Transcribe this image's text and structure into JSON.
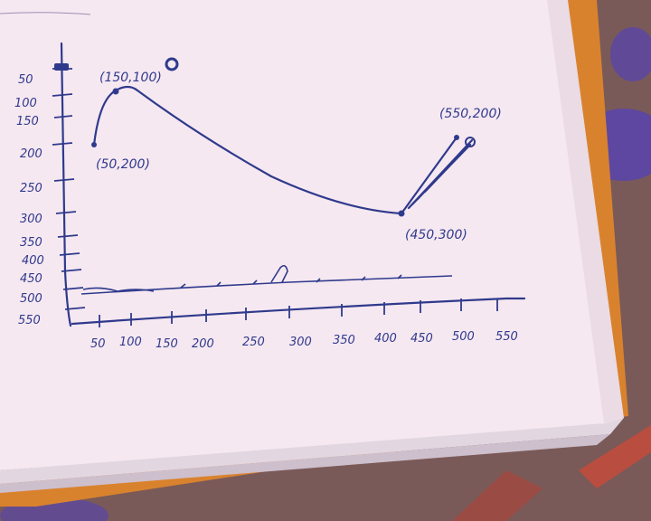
{
  "page": {
    "y_axis_ticks": [
      "50",
      "100",
      "150",
      "200",
      "250",
      "300",
      "350",
      "400",
      "450",
      "500",
      "550"
    ],
    "x_axis_ticks": [
      "50",
      "100",
      "150",
      "200",
      "250",
      "300",
      "350",
      "400",
      "450",
      "500",
      "550"
    ],
    "point_labels": [
      "(150,100)",
      "(50,200)",
      "(450,300)",
      "(550,200)"
    ]
  },
  "chart_data": {
    "type": "line",
    "x_ticks": [
      50,
      100,
      150,
      200,
      250,
      300,
      350,
      400,
      450,
      500,
      550
    ],
    "y_ticks": [
      50,
      100,
      150,
      200,
      250,
      300,
      350,
      400,
      450,
      500,
      550
    ],
    "y_inverted": true,
    "series": [
      {
        "points": [
          [
            50,
            200
          ],
          [
            150,
            100
          ],
          [
            450,
            300
          ],
          [
            550,
            200
          ]
        ]
      }
    ]
  },
  "colors": {
    "ink": "#2f3a8c",
    "paper": "#f6e8f1",
    "page_edge": "#e7d3dd",
    "folder_orange": "#d9822e",
    "cloth": "#7a5a58",
    "cloth_blue": "#5a45a8"
  }
}
